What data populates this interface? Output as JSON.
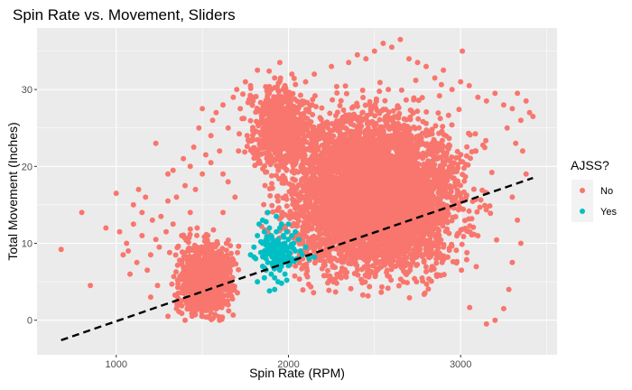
{
  "chart_data": {
    "type": "scatter",
    "title": "Spin Rate vs. Movement, Sliders",
    "xlabel": "Spin Rate (RPM)",
    "ylabel": "Total Movement (Inches)",
    "xlim": [
      540,
      3560
    ],
    "ylim": [
      -4.5,
      38
    ],
    "x_ticks": [
      1000,
      2000,
      3000
    ],
    "y_ticks": [
      0,
      10,
      20,
      30
    ],
    "grid": true,
    "legend": {
      "title": "AJSS?",
      "position": "right",
      "entries": [
        {
          "label": "No",
          "color": "#F8766D"
        },
        {
          "label": "Yes",
          "color": "#00BFC4"
        }
      ]
    },
    "series": [
      {
        "name": "No",
        "color": "#F8766D",
        "dense_regions": [
          {
            "x": [
              1650,
              3350
            ],
            "y": [
              0,
              33
            ]
          },
          {
            "x": [
              1300,
              1700
            ],
            "y": [
              0,
              14
            ]
          },
          {
            "x": [
              1800,
              2300
            ],
            "y": [
              20,
              33
            ]
          }
        ],
        "points": [
          [
            680,
            9.2
          ],
          [
            800,
            14
          ],
          [
            850,
            4.5
          ],
          [
            940,
            12
          ],
          [
            1000,
            16.5
          ],
          [
            1020,
            11.5
          ],
          [
            1040,
            8.5
          ],
          [
            1060,
            10
          ],
          [
            1070,
            9
          ],
          [
            1080,
            6
          ],
          [
            1100,
            12.5
          ],
          [
            1100,
            15
          ],
          [
            1120,
            7.5
          ],
          [
            1150,
            11
          ],
          [
            1170,
            16
          ],
          [
            1200,
            8.5
          ],
          [
            1210,
            13
          ],
          [
            1230,
            10.5
          ],
          [
            1250,
            9.5
          ],
          [
            1260,
            13.5
          ],
          [
            1290,
            11.5
          ],
          [
            1310,
            8.8
          ],
          [
            1330,
            12.5
          ],
          [
            1200,
            3
          ],
          [
            1240,
            4.5
          ],
          [
            1130,
            17
          ],
          [
            1150,
            14
          ],
          [
            1180,
            6.5
          ],
          [
            1300,
            15.5
          ],
          [
            1350,
            16
          ],
          [
            1300,
            19
          ],
          [
            1330,
            19.5
          ],
          [
            1400,
            17.5
          ],
          [
            1430,
            20
          ],
          [
            1450,
            22.5
          ],
          [
            1460,
            17
          ],
          [
            1500,
            19
          ],
          [
            1520,
            21.5
          ],
          [
            1230,
            23
          ],
          [
            1390,
            21
          ],
          [
            1550,
            24
          ],
          [
            1560,
            26
          ],
          [
            1600,
            22
          ],
          [
            1620,
            19
          ],
          [
            1580,
            27
          ],
          [
            1620,
            28
          ],
          [
            1650,
            25
          ],
          [
            1680,
            29
          ],
          [
            1700,
            30
          ],
          [
            1720,
            27.5
          ],
          [
            1750,
            31
          ],
          [
            1760,
            24
          ],
          [
            1780,
            30.5
          ],
          [
            1800,
            29
          ],
          [
            1820,
            32.5
          ],
          [
            1500,
            27.5
          ],
          [
            1480,
            25
          ],
          [
            1550,
            20.5
          ],
          [
            1650,
            18
          ],
          [
            1690,
            16
          ],
          [
            1710,
            22
          ],
          [
            1430,
            14
          ],
          [
            1380,
            11
          ],
          [
            1470,
            12
          ],
          [
            1620,
            14
          ],
          [
            1640,
            10
          ],
          [
            1950,
            33.5
          ],
          [
            2020,
            32
          ],
          [
            2150,
            32
          ],
          [
            2250,
            33
          ],
          [
            2350,
            33.5
          ],
          [
            2400,
            34.5
          ],
          [
            2450,
            34
          ],
          [
            2500,
            35
          ],
          [
            2550,
            36
          ],
          [
            2600,
            35.5
          ],
          [
            2650,
            36.5
          ],
          [
            2700,
            34
          ],
          [
            2750,
            33.5
          ],
          [
            2800,
            33
          ],
          [
            2850,
            31.5
          ],
          [
            2900,
            32.5
          ],
          [
            2950,
            30
          ],
          [
            3000,
            31
          ],
          [
            3050,
            30.5
          ],
          [
            3100,
            29
          ],
          [
            3150,
            28.5
          ],
          [
            3200,
            29.5
          ],
          [
            3250,
            28
          ],
          [
            3300,
            27.5
          ],
          [
            3330,
            29.5
          ],
          [
            3350,
            26
          ],
          [
            3380,
            28.5
          ],
          [
            3400,
            27
          ],
          [
            3420,
            26.5
          ],
          [
            3270,
            25
          ],
          [
            3320,
            23
          ],
          [
            3360,
            22
          ],
          [
            3380,
            19
          ],
          [
            3300,
            16
          ],
          [
            3330,
            13
          ],
          [
            3350,
            10
          ],
          [
            3300,
            7.5
          ],
          [
            3280,
            4
          ],
          [
            3250,
            1.5
          ],
          [
            3200,
            0
          ],
          [
            3150,
            -0.5
          ],
          [
            1300,
            0.5
          ],
          [
            1350,
            1.5
          ],
          [
            1400,
            0
          ],
          [
            1450,
            2.5
          ],
          [
            1500,
            0.5
          ],
          [
            1550,
            1
          ],
          [
            1600,
            0
          ],
          [
            1650,
            2
          ],
          [
            1360,
            3.5
          ],
          [
            1420,
            4.5
          ],
          [
            3010,
            35
          ],
          [
            2580,
            30
          ],
          [
            2100,
            31
          ],
          [
            1980,
            30.5
          ],
          [
            1880,
            27
          ],
          [
            1920,
            31.5
          ]
        ]
      },
      {
        "name": "Yes",
        "color": "#00BFC4",
        "points": [
          [
            1780,
            8.5
          ],
          [
            1800,
            9.5
          ],
          [
            1810,
            8
          ],
          [
            1820,
            11
          ],
          [
            1830,
            12.5
          ],
          [
            1840,
            8.8
          ],
          [
            1850,
            10
          ],
          [
            1850,
            7
          ],
          [
            1860,
            11.5
          ],
          [
            1860,
            9
          ],
          [
            1870,
            6.5
          ],
          [
            1870,
            8
          ],
          [
            1880,
            10.5
          ],
          [
            1880,
            7.5
          ],
          [
            1890,
            9.8
          ],
          [
            1890,
            12
          ],
          [
            1900,
            8.5
          ],
          [
            1900,
            6
          ],
          [
            1900,
            11
          ],
          [
            1910,
            7
          ],
          [
            1910,
            9.5
          ],
          [
            1920,
            10
          ],
          [
            1920,
            8
          ],
          [
            1920,
            5.5
          ],
          [
            1930,
            11.5
          ],
          [
            1930,
            9
          ],
          [
            1940,
            7.5
          ],
          [
            1940,
            10.5
          ],
          [
            1950,
            8.5
          ],
          [
            1950,
            6.5
          ],
          [
            1950,
            12
          ],
          [
            1960,
            9.5
          ],
          [
            1960,
            7
          ],
          [
            1970,
            11
          ],
          [
            1970,
            8
          ],
          [
            1980,
            10
          ],
          [
            1980,
            6
          ],
          [
            1990,
            9
          ],
          [
            1990,
            11.5
          ],
          [
            2000,
            8.5
          ],
          [
            2000,
            10.5
          ],
          [
            2010,
            7.5
          ],
          [
            2010,
            9.5
          ],
          [
            2020,
            11
          ],
          [
            2020,
            8
          ],
          [
            2030,
            10
          ],
          [
            2040,
            9
          ],
          [
            2050,
            8
          ],
          [
            2060,
            10.5
          ],
          [
            2070,
            9
          ],
          [
            2080,
            8.5
          ],
          [
            2100,
            9.5
          ],
          [
            2120,
            8
          ],
          [
            1800,
            8.2
          ],
          [
            1820,
            5
          ],
          [
            1850,
            13
          ],
          [
            1880,
            14
          ],
          [
            1860,
            5.5
          ],
          [
            1920,
            4
          ],
          [
            1890,
            3.8
          ],
          [
            1940,
            5
          ],
          [
            1960,
            4.8
          ],
          [
            1990,
            5.2
          ],
          [
            2150,
            8.2
          ],
          [
            2000,
            12.5
          ],
          [
            1840,
            10.2
          ],
          [
            1870,
            12.8
          ],
          [
            1930,
            13.5
          ],
          [
            1960,
            12.5
          ],
          [
            2040,
            11.5
          ]
        ]
      }
    ],
    "trend_line": {
      "style": "dashed",
      "color": "#000000",
      "from": [
        680,
        -2.6
      ],
      "to": [
        3420,
        18.5
      ]
    }
  }
}
